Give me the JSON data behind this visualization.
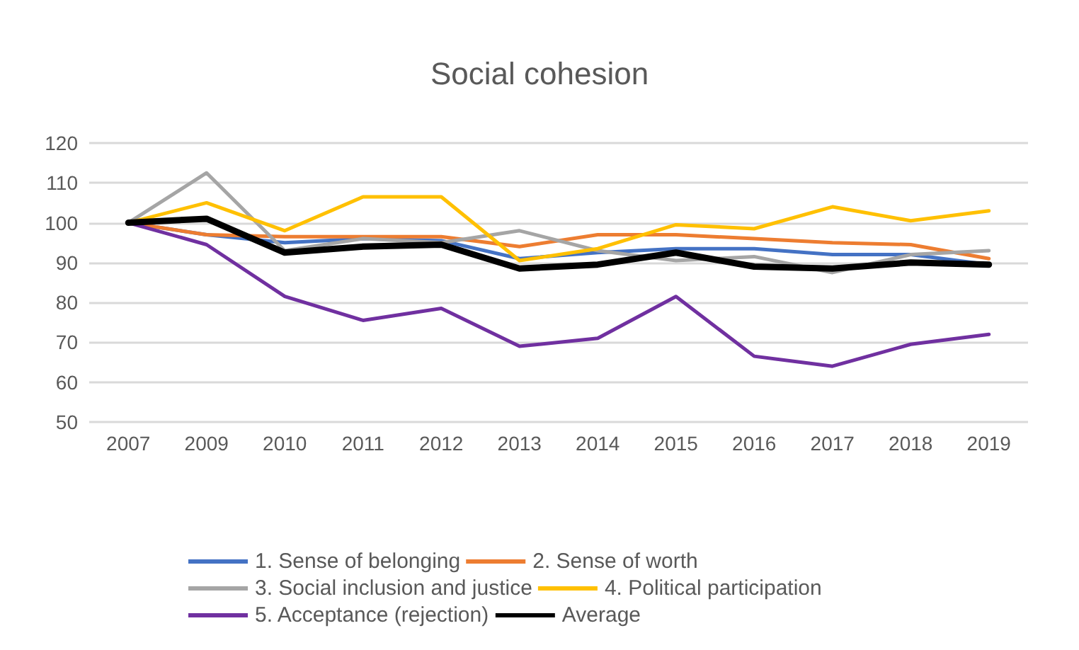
{
  "chart_data": {
    "type": "line",
    "title": "Social cohesion",
    "categories": [
      "2007",
      "2009",
      "2010",
      "2011",
      "2012",
      "2013",
      "2014",
      "2015",
      "2016",
      "2017",
      "2018",
      "2019"
    ],
    "ylim": [
      50,
      120
    ],
    "yticks": [
      50,
      60,
      70,
      80,
      90,
      100,
      110,
      120
    ],
    "grid": "y",
    "legend": "bottom",
    "marker": "none",
    "series": [
      {
        "name": "1. Sense of belonging",
        "color": "#4472c4",
        "values": [
          100,
          97,
          95,
          96,
          95.5,
          91,
          92.5,
          93.5,
          93.5,
          92,
          92,
          89.5
        ]
      },
      {
        "name": "2. Sense of worth",
        "color": "#ed7d31",
        "values": [
          100,
          97,
          96.5,
          96.5,
          96.5,
          94,
          97,
          97,
          96,
          95,
          94.5,
          91
        ]
      },
      {
        "name": "3. Social inclusion and justice",
        "color": "#a5a5a5",
        "values": [
          100,
          112.5,
          93,
          96,
          95,
          98,
          93,
          90.5,
          91.5,
          87.5,
          92,
          93
        ]
      },
      {
        "name": "4. Political participation",
        "color": "#ffc000",
        "values": [
          100,
          105,
          98,
          106.5,
          106.5,
          90.5,
          93.5,
          99.5,
          98.5,
          104,
          100.5,
          103
        ]
      },
      {
        "name": "5. Acceptance (rejection)",
        "color": "#7030a0",
        "values": [
          100,
          94.5,
          81.5,
          75.5,
          78.5,
          69,
          71,
          81.5,
          66.5,
          64,
          69.5,
          72
        ]
      },
      {
        "name": "Average",
        "color": "#000000",
        "values": [
          100,
          101,
          92.5,
          94,
          94.5,
          88.5,
          89.5,
          92.5,
          89,
          88.5,
          90,
          89.5
        ]
      }
    ]
  }
}
